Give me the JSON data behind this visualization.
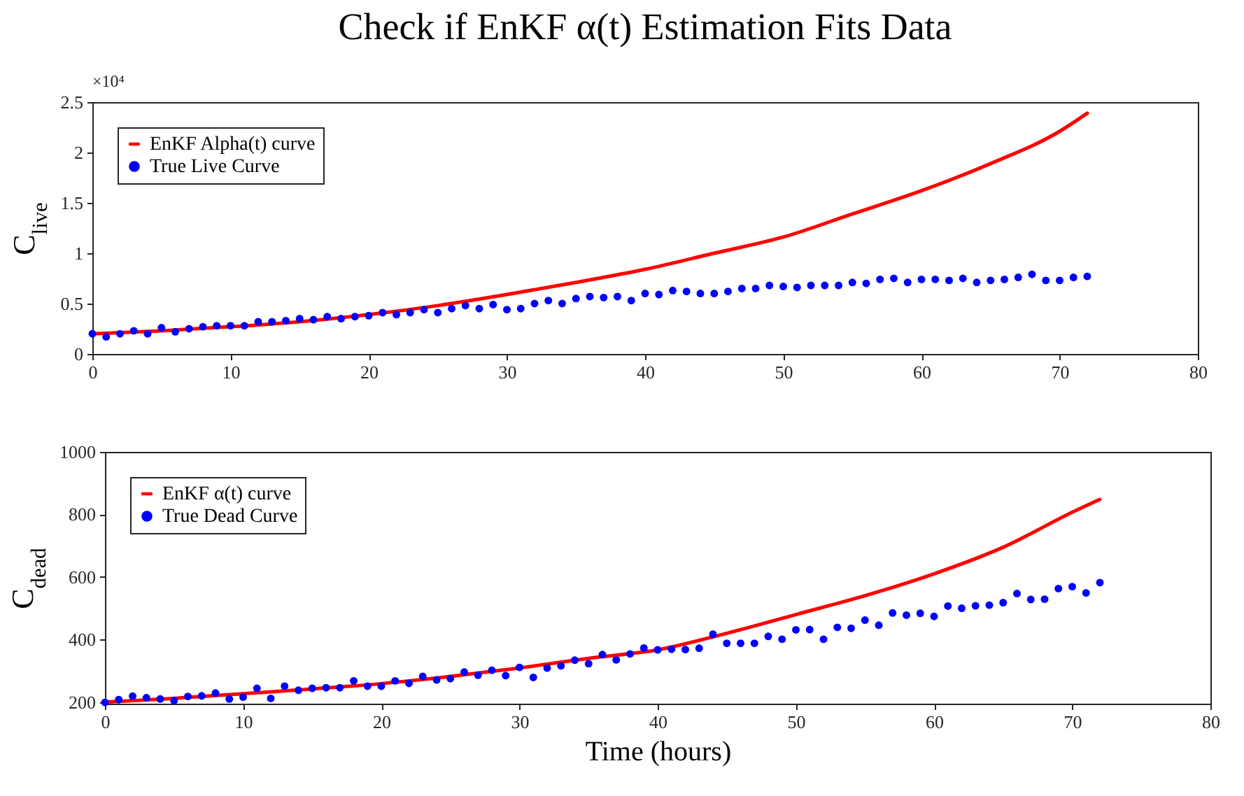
{
  "chart_data": [
    {
      "type": "scatter",
      "title": "Check if EnKF α(t) Estimation Fits Data",
      "ylabel": "C$_{live}$",
      "annotations": [
        "×10⁴"
      ],
      "x": [
        0,
        1,
        2,
        3,
        4,
        5,
        6,
        7,
        8,
        9,
        10,
        11,
        12,
        13,
        14,
        15,
        16,
        17,
        18,
        19,
        20,
        21,
        22,
        23,
        24,
        25,
        26,
        27,
        28,
        29,
        30,
        31,
        32,
        33,
        34,
        35,
        36,
        37,
        38,
        39,
        40,
        41,
        42,
        43,
        44,
        45,
        46,
        47,
        48,
        49,
        50,
        51,
        52,
        53,
        54,
        55,
        56,
        57,
        58,
        59,
        60,
        61,
        62,
        63,
        64,
        65,
        66,
        67,
        68,
        69,
        70,
        71,
        72
      ],
      "series": [
        {
          "name": "EnKF Alpha(t) curve",
          "type": "line",
          "color": "#ff0000",
          "x": [
            0,
            5,
            10,
            15,
            20,
            25,
            30,
            35,
            40,
            45,
            50,
            55,
            60,
            65,
            70,
            72
          ],
          "values": [
            0.2,
            0.23,
            0.27,
            0.32,
            0.39,
            0.48,
            0.59,
            0.71,
            0.84,
            1.0,
            1.16,
            1.39,
            1.62,
            1.89,
            2.21,
            2.39
          ]
        },
        {
          "name": "True Live Curve",
          "type": "scatter",
          "color": "#0000ff",
          "marker": "circle",
          "values": [
            0.2,
            0.17,
            0.2,
            0.23,
            0.2,
            0.26,
            0.22,
            0.25,
            0.27,
            0.28,
            0.28,
            0.28,
            0.32,
            0.32,
            0.33,
            0.35,
            0.34,
            0.37,
            0.35,
            0.37,
            0.38,
            0.41,
            0.39,
            0.41,
            0.44,
            0.41,
            0.45,
            0.48,
            0.45,
            0.49,
            0.44,
            0.45,
            0.5,
            0.53,
            0.5,
            0.55,
            0.57,
            0.56,
            0.57,
            0.53,
            0.6,
            0.59,
            0.63,
            0.62,
            0.6,
            0.6,
            0.62,
            0.65,
            0.65,
            0.68,
            0.67,
            0.66,
            0.68,
            0.68,
            0.68,
            0.71,
            0.7,
            0.74,
            0.75,
            0.71,
            0.74,
            0.74,
            0.73,
            0.75,
            0.71,
            0.73,
            0.74,
            0.76,
            0.79,
            0.73,
            0.73,
            0.76,
            0.77
          ]
        }
      ],
      "xlim": [
        0,
        80
      ],
      "xticks": [
        0,
        10,
        20,
        30,
        40,
        50,
        60,
        70,
        80
      ],
      "ylim": [
        0,
        2.5
      ],
      "yticks": [
        0,
        0.5,
        1,
        1.5,
        2,
        2.5
      ],
      "legend": "top left",
      "grid": false
    },
    {
      "type": "scatter",
      "xlabel": "Time (hours)",
      "ylabel": "C$_{dead}$",
      "x": [
        0,
        1,
        2,
        3,
        4,
        5,
        6,
        7,
        8,
        9,
        10,
        11,
        12,
        13,
        14,
        15,
        16,
        17,
        18,
        19,
        20,
        21,
        22,
        23,
        24,
        25,
        26,
        27,
        28,
        29,
        30,
        31,
        32,
        33,
        34,
        35,
        36,
        37,
        38,
        39,
        40,
        41,
        42,
        43,
        44,
        45,
        46,
        47,
        48,
        49,
        50,
        51,
        52,
        53,
        54,
        55,
        56,
        57,
        58,
        59,
        60,
        61,
        62,
        63,
        64,
        65,
        66,
        67,
        68,
        69,
        70,
        71,
        72
      ],
      "series": [
        {
          "name": "EnKF α(t) curve",
          "type": "line",
          "color": "#ff0000",
          "x": [
            0,
            5,
            10,
            15,
            20,
            25,
            30,
            35,
            40,
            45,
            50,
            55,
            60,
            65,
            70,
            72
          ],
          "values": [
            200,
            212,
            227,
            242,
            259,
            282,
            309,
            340,
            367,
            420,
            480,
            540,
            610,
            695,
            807,
            848
          ]
        },
        {
          "name": "True Dead Curve",
          "type": "scatter",
          "color": "#0000ff",
          "marker": "circle",
          "values": [
            199,
            208,
            219,
            214,
            210,
            205,
            218,
            220,
            229,
            210,
            216,
            244,
            212,
            251,
            238,
            244,
            246,
            246,
            268,
            251,
            251,
            268,
            260,
            282,
            271,
            275,
            296,
            286,
            302,
            285,
            311,
            279,
            309,
            316,
            334,
            323,
            352,
            335,
            354,
            373,
            367,
            369,
            368,
            372,
            417,
            388,
            388,
            388,
            410,
            401,
            431,
            432,
            401,
            439,
            436,
            462,
            446,
            485,
            478,
            484,
            474,
            507,
            500,
            508,
            510,
            518,
            547,
            528,
            529,
            563,
            569,
            549,
            582
          ]
        }
      ],
      "xlim": [
        0,
        80
      ],
      "xticks": [
        0,
        10,
        20,
        30,
        40,
        50,
        60,
        70,
        80
      ],
      "ylim": [
        195,
        1000
      ],
      "yticks": [
        200,
        400,
        600,
        800,
        1000
      ],
      "legend": "top left",
      "grid": false
    }
  ]
}
